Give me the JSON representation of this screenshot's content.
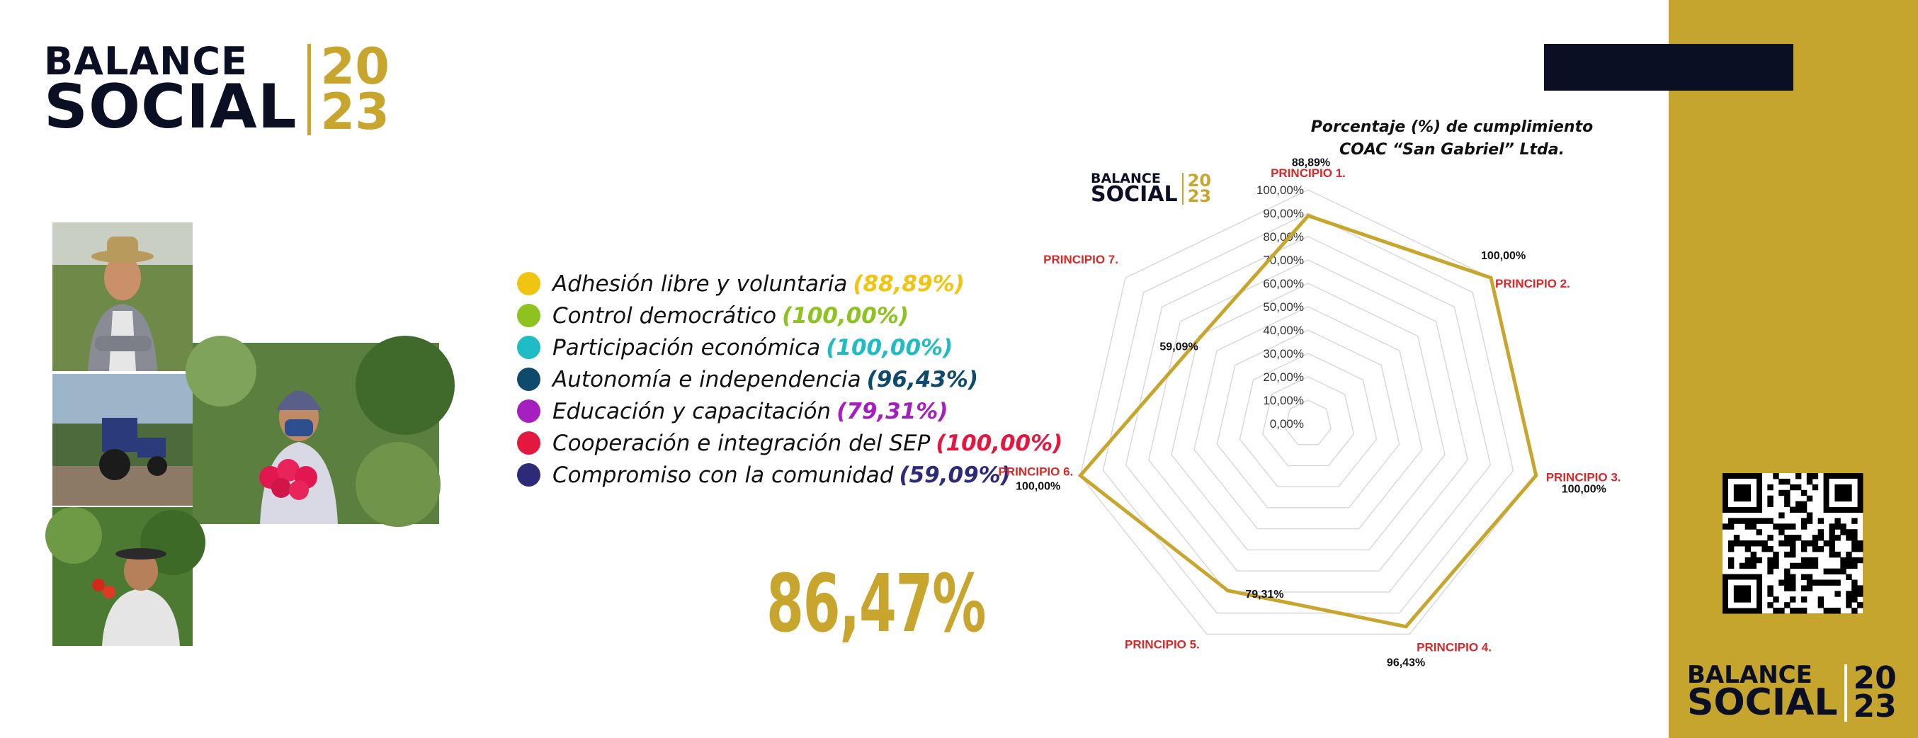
{
  "header": {
    "logo_line1": "BALANCE",
    "logo_line2": "SOCIAL",
    "logo_year1": "20",
    "logo_year2": "23"
  },
  "legend": [
    {
      "label": "Adhesión libre y voluntaria",
      "value": "(88,89%)",
      "color": "#f1c40f"
    },
    {
      "label": "Control democrático",
      "value": "(100,00%)",
      "color": "#8dc21f"
    },
    {
      "label": "Participación económica",
      "value": "(100,00%)",
      "color": "#1fbcc5"
    },
    {
      "label": "Autonomía e independencia",
      "value": "(96,43%)",
      "color": "#0e4a6b"
    },
    {
      "label": "Educación y capacitación",
      "value": "(79,31%)",
      "color": "#a41fbe"
    },
    {
      "label": "Cooperación e integración del SEP",
      "value": "(100,00%)",
      "color": "#e3173f"
    },
    {
      "label": "Compromiso con la comunidad",
      "value": "(59,09%)",
      "color": "#2e2a7a"
    }
  ],
  "total": "86,47%",
  "chart_data": {
    "type": "radar",
    "title": "Porcentaje (%) de cumplimiento COAC “San Gabriel” Ltda.",
    "title_line1": "Porcentaje (%) de cumplimiento",
    "title_line2": "COAC “San Gabriel” Ltda.",
    "categories": [
      "PRINCIPIO 1.",
      "PRINCIPIO 2.",
      "PRINCIPIO 3.",
      "PRINCIPIO 4.",
      "PRINCIPIO 5.",
      "PRINCIPIO 6.",
      "PRINCIPIO 7."
    ],
    "values": [
      88.89,
      100.0,
      100.0,
      96.43,
      79.31,
      100.0,
      59.09
    ],
    "value_labels": [
      "88,89%",
      "100,00%",
      "100,00%",
      "96,43%",
      "79,31%",
      "100,00%",
      "59,09%"
    ],
    "tick_labels": [
      "0,00%",
      "10,00%",
      "20,00%",
      "30,00%",
      "40,00%",
      "50,00%",
      "60,00%",
      "70,00%",
      "80,00%",
      "90,00%",
      "100,00%"
    ],
    "rlim": [
      0,
      100
    ],
    "grid": true,
    "series_color": "#c8a62e",
    "label_color": "#d42a2a"
  },
  "colors": {
    "gold": "#c8a62e",
    "navy": "#0b0f24"
  }
}
